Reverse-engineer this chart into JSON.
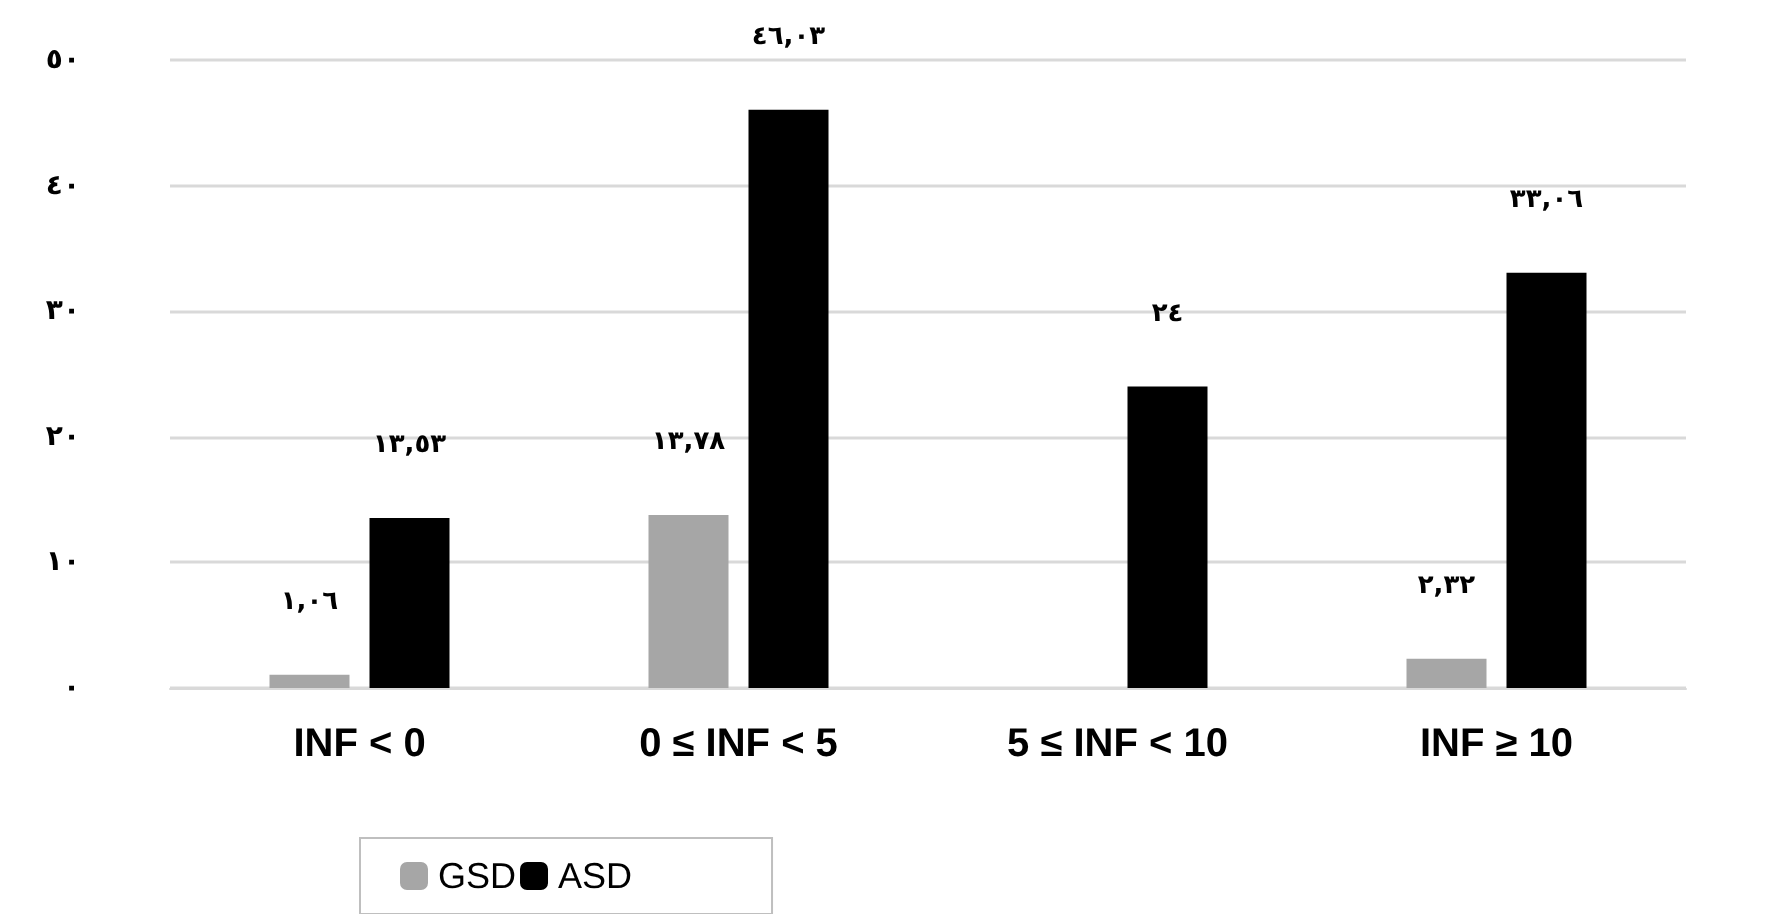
{
  "chart_data": {
    "type": "bar",
    "categories": [
      "INF < 0",
      "0 ≤ INF < 5",
      "5 ≤ INF < 10",
      "INF ≥ 10"
    ],
    "series": [
      {
        "name": "GSD",
        "color": "#a6a6a6",
        "values": [
          1.06,
          13.78,
          null,
          2.32
        ],
        "value_labels": [
          "١,٠٦",
          "١٣,٧٨",
          null,
          "٢,٣٢"
        ]
      },
      {
        "name": "ASD",
        "color": "#000000",
        "values": [
          13.53,
          46.03,
          24,
          33.06
        ],
        "value_labels": [
          "١٣,٥٣",
          "٤٦,٠٣",
          "٢٤",
          "٣٣,٠٦"
        ]
      }
    ],
    "ylim": [
      0,
      50
    ],
    "yticks": [
      {
        "value": 0,
        "label": "٠"
      },
      {
        "value": 10,
        "label": "١٠"
      },
      {
        "value": 20,
        "label": "٢٠"
      },
      {
        "value": 30,
        "label": "٣٠"
      },
      {
        "value": 40,
        "label": "٤٠"
      },
      {
        "value": 50,
        "label": "٥٠"
      }
    ],
    "grid": "y",
    "legend": "bottom left"
  }
}
